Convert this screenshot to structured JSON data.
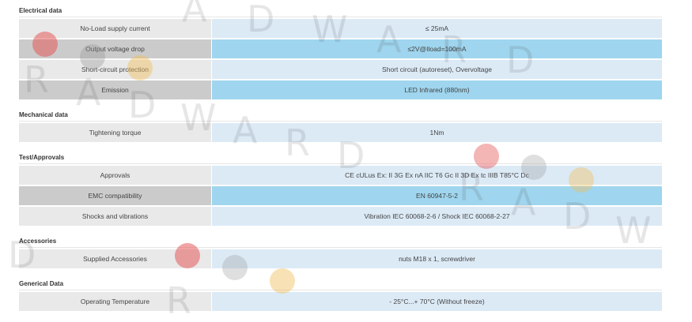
{
  "sections": [
    {
      "title": "Electrical data",
      "rows": [
        [
          "No-Load supply current",
          "≤ 25mA"
        ],
        [
          "Output voltage drop",
          "≤2V@Iload=100mA"
        ],
        [
          "Short-circuit protection",
          "Short circuit (autoreset), Overvoltage"
        ],
        [
          "Emission",
          "LED Infrared (880nm)"
        ]
      ]
    },
    {
      "title": "Mechanical data",
      "rows": [
        [
          "Tightening torque",
          "1Nm"
        ]
      ]
    },
    {
      "title": "Test/Approvals",
      "rows": [
        [
          "Approvals",
          "CE cULus Ex: II 3G Ex nA IIC T6 Gc II 3D Ex tc IIIB T85°C Dc"
        ],
        [
          "EMC compatibility",
          "EN 60947-5-2"
        ],
        [
          "Shocks and vibrations",
          "Vibration IEC 60068-2-6 / Shock IEC 60068-2-27"
        ]
      ]
    },
    {
      "title": "Accessories",
      "rows": [
        [
          "Supplied Accessories",
          "nuts M18 x 1, screwdriver"
        ]
      ]
    },
    {
      "title": "Generical Data",
      "rows": [
        [
          "Operating Temperature",
          "- 25°C...+ 70°C (Without freeze)"
        ]
      ]
    }
  ],
  "watermark": {
    "letters": [
      "R",
      "A",
      "D",
      "W",
      "A",
      "R",
      "D"
    ]
  }
}
